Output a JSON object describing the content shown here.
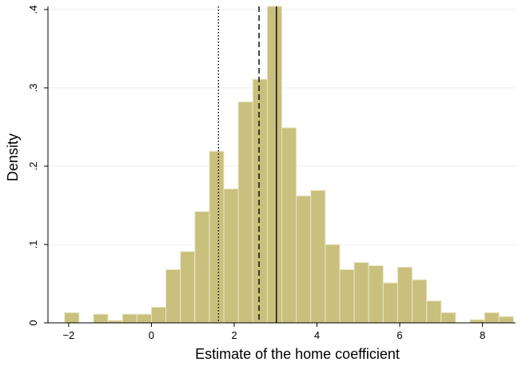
{
  "chart_data": {
    "type": "histogram",
    "xlabel": "Estimate of the home coefficient",
    "ylabel": "Density",
    "xlim": [
      -2.5,
      8.8
    ],
    "ylim": [
      0,
      0.404
    ],
    "xticks": [
      -2,
      0,
      2,
      4,
      6,
      8
    ],
    "xtick_labels": [
      "−2",
      "0",
      "2",
      "4",
      "6",
      "8"
    ],
    "yticks": [
      0,
      0.1,
      0.2,
      0.3,
      0.4
    ],
    "ytick_labels": [
      "0",
      ".1",
      ".2",
      ".3",
      ".4"
    ],
    "grid": true,
    "bin_width": 0.35,
    "bins": [
      {
        "x0": -2.1,
        "value": 0.013
      },
      {
        "x0": -1.4,
        "value": 0.011
      },
      {
        "x0": -1.05,
        "value": 0.003
      },
      {
        "x0": -0.7,
        "value": 0.011
      },
      {
        "x0": -0.35,
        "value": 0.011
      },
      {
        "x0": 0.0,
        "value": 0.02
      },
      {
        "x0": 0.35,
        "value": 0.068
      },
      {
        "x0": 0.7,
        "value": 0.091
      },
      {
        "x0": 1.05,
        "value": 0.142
      },
      {
        "x0": 1.4,
        "value": 0.219
      },
      {
        "x0": 1.75,
        "value": 0.171
      },
      {
        "x0": 2.1,
        "value": 0.282
      },
      {
        "x0": 2.45,
        "value": 0.311
      },
      {
        "x0": 2.8,
        "value": 0.404
      },
      {
        "x0": 3.15,
        "value": 0.249
      },
      {
        "x0": 3.5,
        "value": 0.162
      },
      {
        "x0": 3.85,
        "value": 0.169
      },
      {
        "x0": 4.2,
        "value": 0.1
      },
      {
        "x0": 4.55,
        "value": 0.068
      },
      {
        "x0": 4.9,
        "value": 0.077
      },
      {
        "x0": 5.25,
        "value": 0.073
      },
      {
        "x0": 5.6,
        "value": 0.051
      },
      {
        "x0": 5.95,
        "value": 0.071
      },
      {
        "x0": 6.3,
        "value": 0.055
      },
      {
        "x0": 6.65,
        "value": 0.028
      },
      {
        "x0": 7.0,
        "value": 0.013
      },
      {
        "x0": 7.7,
        "value": 0.004
      },
      {
        "x0": 8.05,
        "value": 0.013
      },
      {
        "x0": 8.4,
        "value": 0.008
      }
    ],
    "reference_lines": [
      {
        "x": 1.62,
        "style": "dotted"
      },
      {
        "x": 2.6,
        "style": "dashed"
      },
      {
        "x": 3.02,
        "style": "solid"
      }
    ],
    "colors": {
      "bar_fill": "#c8c07c",
      "bar_edge": "#e9e6c4",
      "grid": "#e8ecef"
    }
  }
}
